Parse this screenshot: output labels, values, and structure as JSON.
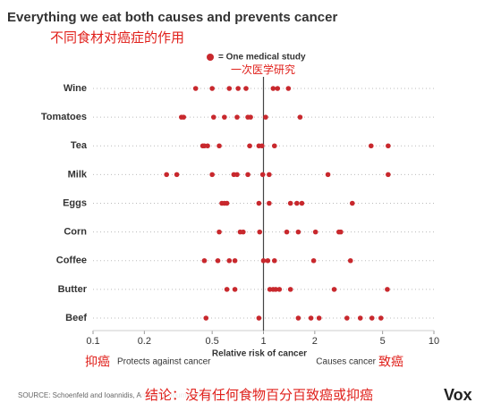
{
  "chart_data": {
    "type": "dotplot",
    "title": "Everything we eat both causes and prevents cancer",
    "subtitle": "不同食材对癌症的作用",
    "legend_label": "= One medical study",
    "legend_note": "一次医学研究",
    "xlabel": "Relative risk of cancer",
    "left_note": "Protects against cancer",
    "right_note": "Causes cancer",
    "left_annotation": "抑癌",
    "right_annotation": "致癌",
    "conclusion": "结论：没有任何食物百分百致癌或抑癌",
    "source": "SOURCE: Schoenfeld and Ioannidis, American Journal of Clinical Nutrition",
    "brand": "Vox",
    "color": "#c8282d",
    "xscale": "log",
    "xlim": [
      0.1,
      10
    ],
    "xticks": [
      0.1,
      0.2,
      0.5,
      1,
      2,
      5,
      10
    ],
    "ref_line": 1,
    "grid": true,
    "categories": [
      "Wine",
      "Tomatoes",
      "Tea",
      "Milk",
      "Eggs",
      "Corn",
      "Coffee",
      "Butter",
      "Beef"
    ],
    "values": [
      [
        0.4,
        0.5,
        0.63,
        0.71,
        0.79,
        1.14,
        1.21,
        1.4
      ],
      [
        0.33,
        0.34,
        0.51,
        0.59,
        0.7,
        0.81,
        0.84,
        1.03,
        1.64
      ],
      [
        0.44,
        0.45,
        0.47,
        0.55,
        0.83,
        0.94,
        0.98,
        1.16,
        4.28,
        5.39
      ],
      [
        0.27,
        0.31,
        0.5,
        0.67,
        0.7,
        0.81,
        0.99,
        1.08,
        2.39,
        5.39
      ],
      [
        0.57,
        0.59,
        0.61,
        0.94,
        1.08,
        1.44,
        1.57,
        1.68,
        3.32
      ],
      [
        0.55,
        0.73,
        0.76,
        0.95,
        1.37,
        1.6,
        2.02,
        2.77,
        2.84
      ],
      [
        0.45,
        0.54,
        0.63,
        0.68,
        1.0,
        1.06,
        1.16,
        1.97,
        3.24
      ],
      [
        0.61,
        0.68,
        1.09,
        1.14,
        1.18,
        1.24,
        1.44,
        2.6,
        5.33
      ],
      [
        0.46,
        0.94,
        1.6,
        1.9,
        2.12,
        3.09,
        3.7,
        4.33,
        4.89
      ]
    ]
  }
}
